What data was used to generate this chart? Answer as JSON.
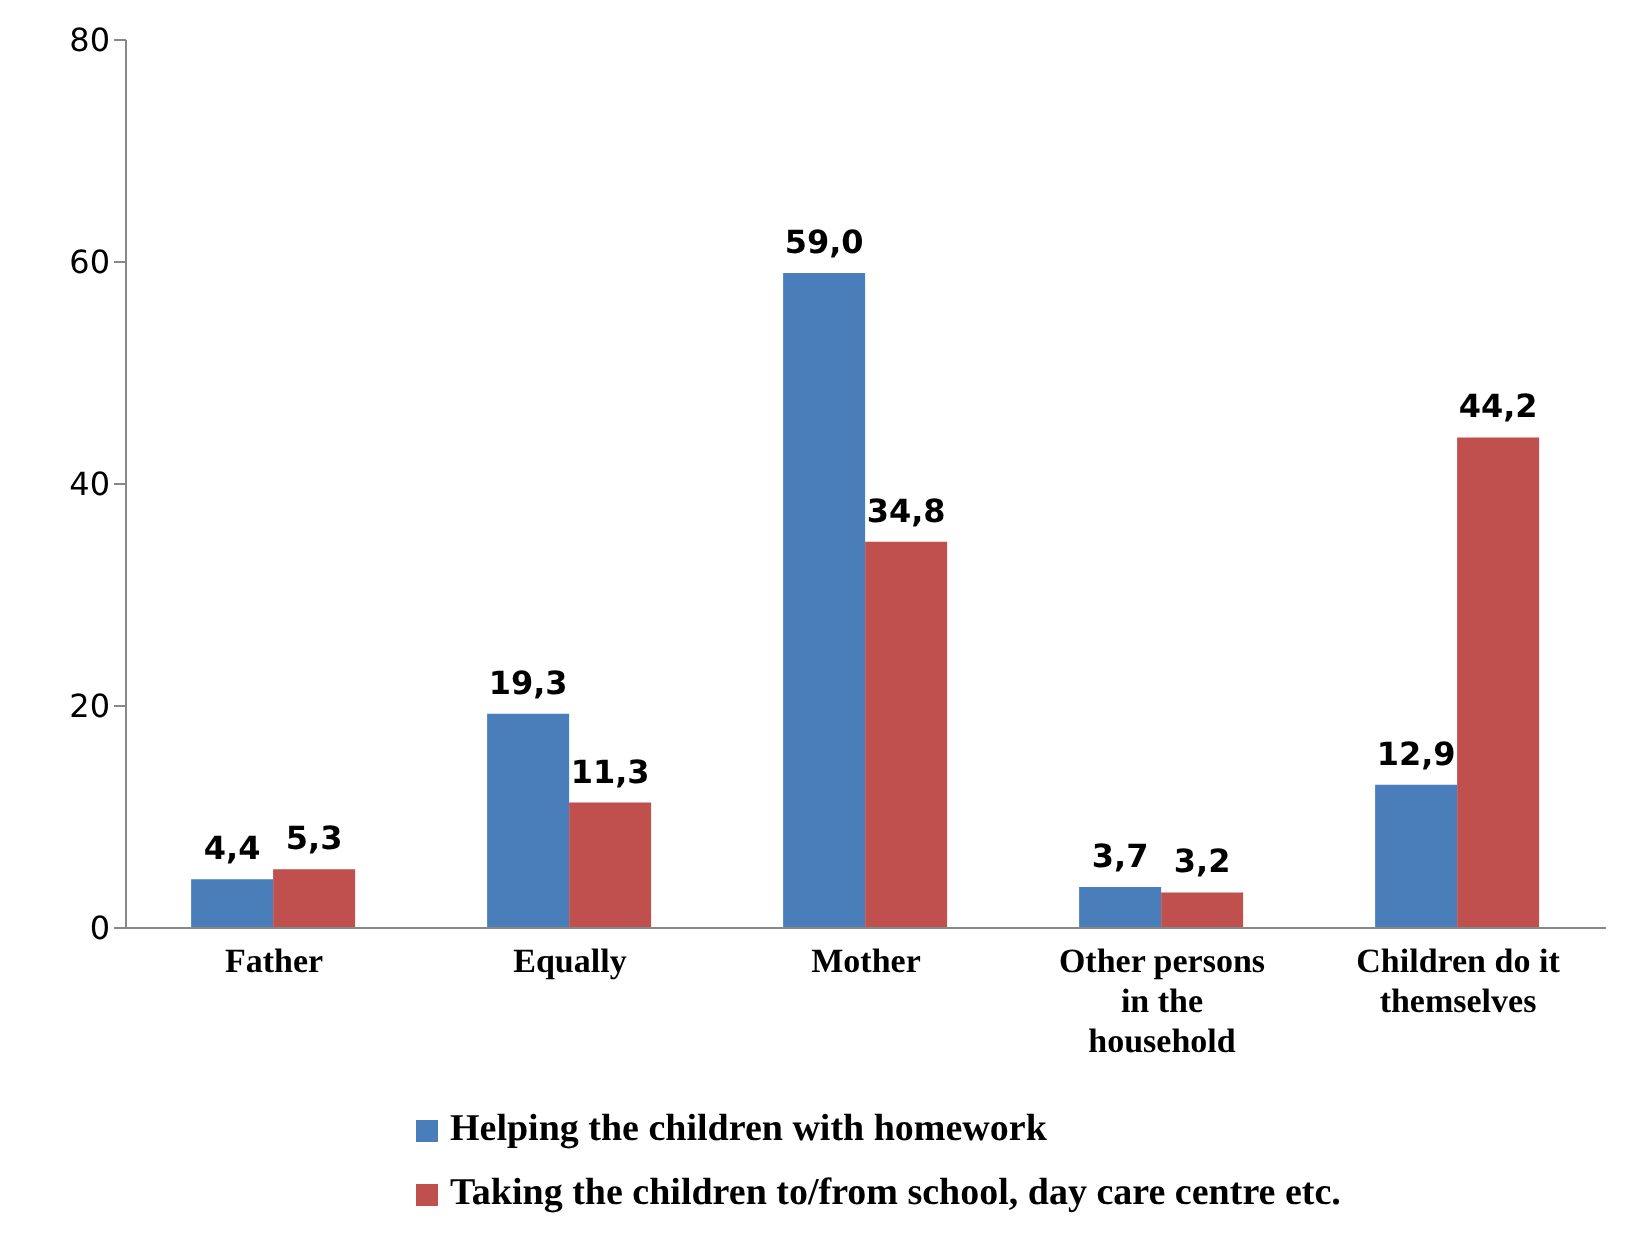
{
  "chart_data": {
    "type": "bar",
    "categories": [
      "Father",
      "Equally",
      "Mother",
      "Other persons in the household",
      "Children do it themselves"
    ],
    "series": [
      {
        "name": "Helping the children with homework",
        "color": "#4a7ebb",
        "values": [
          4.4,
          19.3,
          59.0,
          3.7,
          12.9
        ],
        "value_labels": [
          "4,4",
          "19,3",
          "59,0",
          "3,7",
          "12,9"
        ]
      },
      {
        "name": "Taking the children to/from school, day care centre etc.",
        "color": "#c0504d",
        "values": [
          5.3,
          11.3,
          34.8,
          3.2,
          44.2
        ],
        "value_labels": [
          "5,3",
          "11,3",
          "34,8",
          "3,2",
          "44,2"
        ]
      }
    ],
    "ylim": [
      0,
      80
    ],
    "yticks": [
      0,
      20,
      40,
      60,
      80
    ],
    "grid": false,
    "legend": "bottom"
  }
}
